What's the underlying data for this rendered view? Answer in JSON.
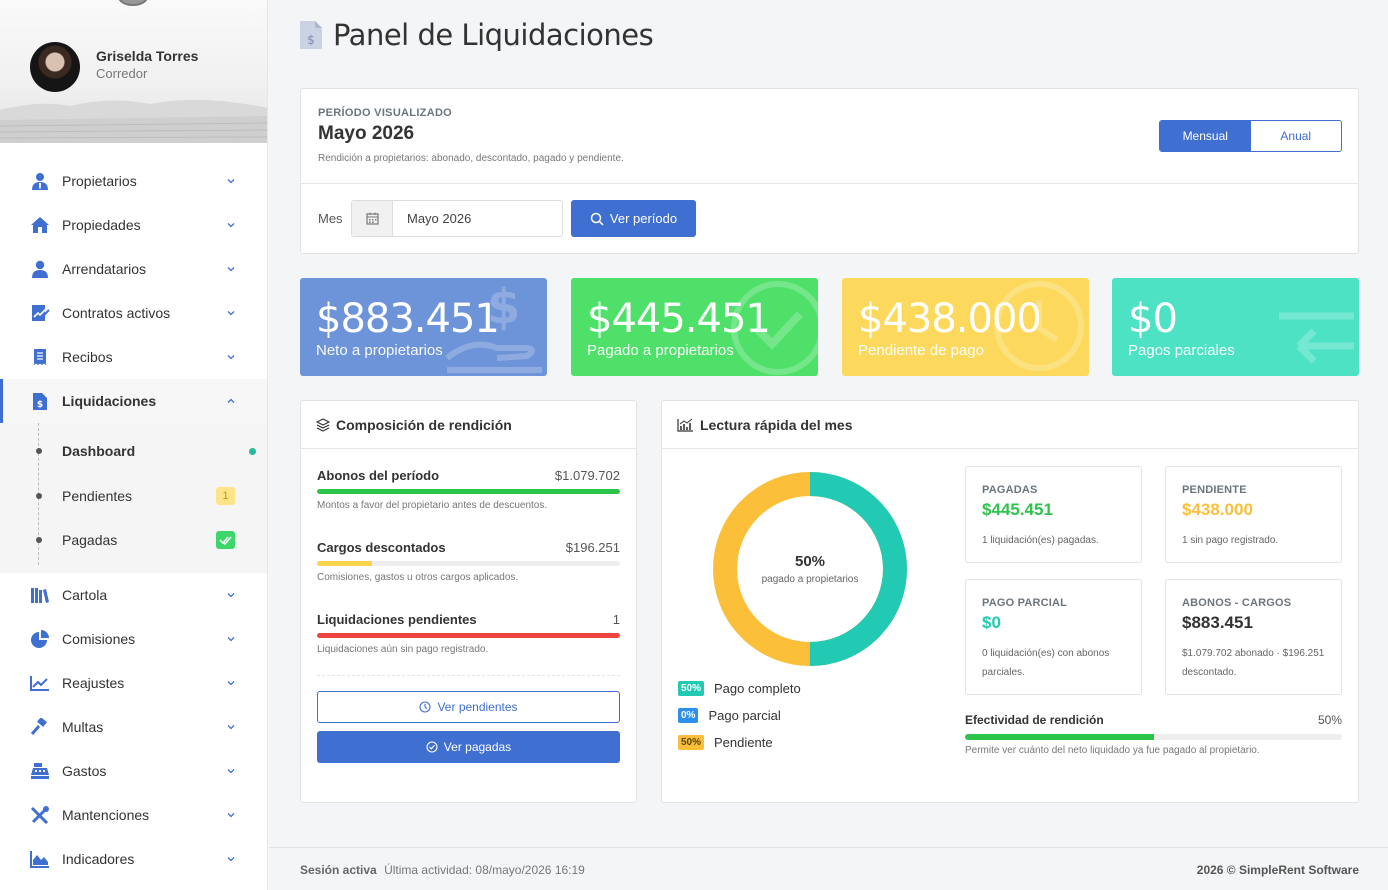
{
  "user": {
    "name": "Griselda Torres",
    "role": "Corredor"
  },
  "nav": {
    "items": [
      {
        "label": "Propietarios",
        "icon": "user-tie-icon"
      },
      {
        "label": "Propiedades",
        "icon": "home-icon"
      },
      {
        "label": "Arrendatarios",
        "icon": "user-icon"
      },
      {
        "label": "Contratos activos",
        "icon": "contract-icon"
      },
      {
        "label": "Recibos",
        "icon": "receipt-icon"
      },
      {
        "label": "Liquidaciones",
        "icon": "invoice-dollar-icon"
      }
    ],
    "submenu": [
      {
        "label": "Dashboard"
      },
      {
        "label": "Pendientes",
        "badge": "1"
      },
      {
        "label": "Pagadas"
      }
    ],
    "items2": [
      {
        "label": "Cartola",
        "icon": "books-icon"
      },
      {
        "label": "Comisiones",
        "icon": "pie-chart-icon"
      },
      {
        "label": "Reajustes",
        "icon": "line-chart-icon"
      },
      {
        "label": "Multas",
        "icon": "gavel-icon"
      },
      {
        "label": "Gastos",
        "icon": "cash-register-icon"
      },
      {
        "label": "Mantenciones",
        "icon": "tools-icon"
      },
      {
        "label": "Indicadores",
        "icon": "area-chart-icon"
      }
    ]
  },
  "header": {
    "title": "Panel de Liquidaciones"
  },
  "period": {
    "caption": "PERÍODO VISUALIZADO",
    "value": "Mayo 2026",
    "description": "Rendición a propietarios: abonado, descontado, pagado y pendiente.",
    "toggle": [
      "Mensual",
      "Anual"
    ],
    "month_label": "Mes",
    "month_value": "Mayo 2026",
    "button": "Ver período"
  },
  "stats": [
    {
      "value": "$883.451",
      "label": "Neto a propietarios",
      "color": "#6d94d8"
    },
    {
      "value": "$445.451",
      "label": "Pagado a propietarios",
      "color": "#4fe06a"
    },
    {
      "value": "$438.000",
      "label": "Pendiente de pago",
      "color": "#fcd95c"
    },
    {
      "value": "$0",
      "label": "Pagos parciales",
      "color": "#4de2c4"
    }
  ],
  "composition": {
    "title": "Composición de rendición",
    "rows": [
      {
        "title": "Abonos del período",
        "value": "$1.079.702",
        "fill": 1.0,
        "color": "#2ec44b",
        "note": "Montos a favor del propietario antes de descuentos."
      },
      {
        "title": "Cargos descontados",
        "value": "$196.251",
        "fill": 0.18,
        "color": "#fcd34d",
        "note": "Comisiones, gastos u otros cargos aplicados."
      },
      {
        "title": "Liquidaciones pendientes",
        "value": "1",
        "fill": 1.0,
        "color": "#ef4444",
        "note": "Liquidaciones aún sin pago registrado."
      }
    ],
    "btn_pending": "Ver pendientes",
    "btn_paid": "Ver pagadas"
  },
  "quick": {
    "title": "Lectura rápida del mes",
    "donut": {
      "value": "50%",
      "label": "pagado a propietarios",
      "paid_fraction": 0.5
    },
    "legend": [
      {
        "pct": "50%",
        "label": "Pago completo",
        "bg": "#22c9b3",
        "fg": "#ffffff"
      },
      {
        "pct": "0%",
        "label": "Pago parcial",
        "bg": "#2d8ff0",
        "fg": "#ffffff"
      },
      {
        "pct": "50%",
        "label": "Pendiente",
        "bg": "#fbbf3a",
        "fg": "#5b4300"
      }
    ],
    "minis": [
      {
        "caption": "PAGADAS",
        "value": "$445.451",
        "desc": "1 liquidación(es) pagadas.",
        "color": "#2ec44b"
      },
      {
        "caption": "PENDIENTE",
        "value": "$438.000",
        "desc": "1 sin pago registrado.",
        "color": "#fbbf3a"
      },
      {
        "caption": "PAGO PARCIAL",
        "value": "$0",
        "desc": "0 liquidación(es) con abonos parciales.",
        "color": "#22c9b3"
      },
      {
        "caption": "ABONOS - CARGOS",
        "value": "$883.451",
        "desc": "$1.079.702 abonado · $196.251 descontado.",
        "color": "#333333"
      }
    ],
    "efficiency": {
      "title": "Efectividad de rendición",
      "value": "50%",
      "fill": 0.5,
      "note": "Permite ver cuánto del neto liquidado ya fue pagado al propietario."
    }
  },
  "footer": {
    "session": "Sesión activa",
    "activity": "Última actividad: 08/mayo/2026 16:19",
    "copyright": "2026 © SimpleRent Software"
  }
}
